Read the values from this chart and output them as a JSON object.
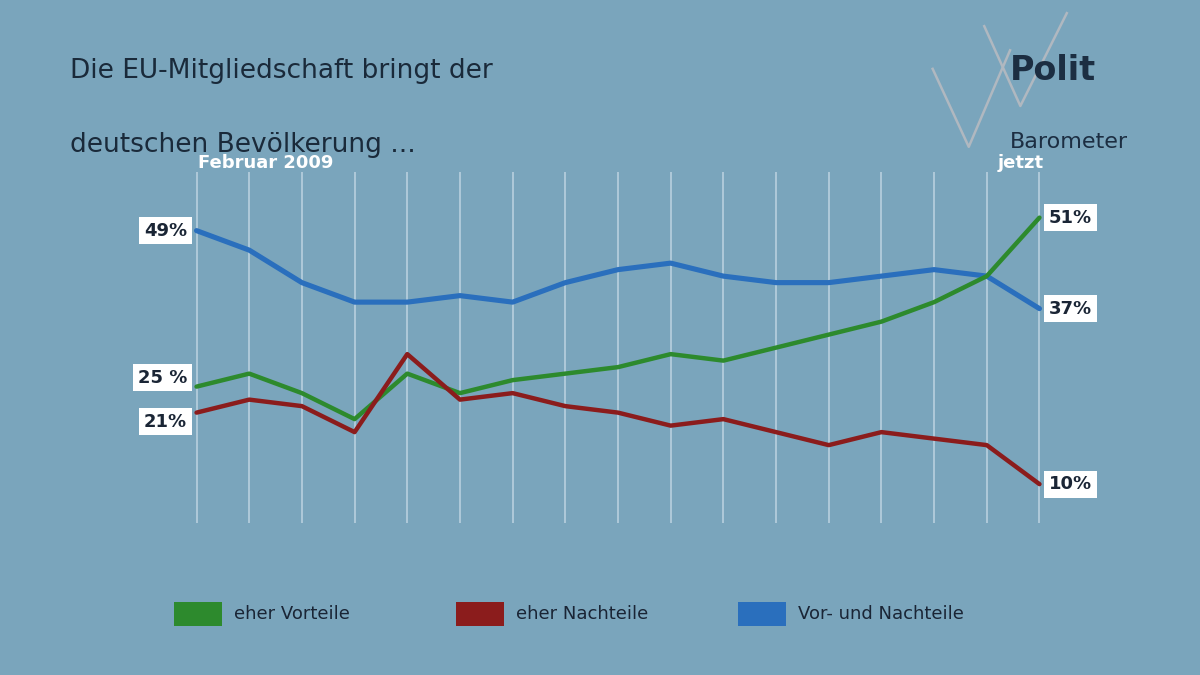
{
  "title_line1": "Die EU-Mitgliedschaft bringt der",
  "title_line2": "deutschen Bevölkerung ...",
  "bg_color": "#7aa5bc",
  "chart_bg": "#9bbcce",
  "title_bg": "#d8e8f0",
  "label_start": "Februar 2009",
  "label_end": "jetzt",
  "legend": [
    "eher Vorteile",
    "eher Nachteile",
    "Vor- und Nachteile"
  ],
  "colors": {
    "vorteile": "#2d8a2d",
    "nachteile": "#8b1c1c",
    "vor_und_nach": "#2a6fbd"
  },
  "vorteile": [
    25,
    27,
    24,
    20,
    27,
    24,
    26,
    27,
    28,
    30,
    29,
    31,
    33,
    35,
    38,
    42,
    51
  ],
  "nachteile": [
    21,
    23,
    22,
    18,
    30,
    23,
    24,
    22,
    21,
    19,
    20,
    18,
    16,
    18,
    17,
    16,
    10
  ],
  "vor_und_nach": [
    49,
    46,
    41,
    38,
    38,
    39,
    38,
    41,
    43,
    44,
    42,
    41,
    41,
    42,
    43,
    42,
    37
  ],
  "n_points": 17,
  "ylim": [
    4,
    58
  ],
  "grid_color": "#b8d0de"
}
